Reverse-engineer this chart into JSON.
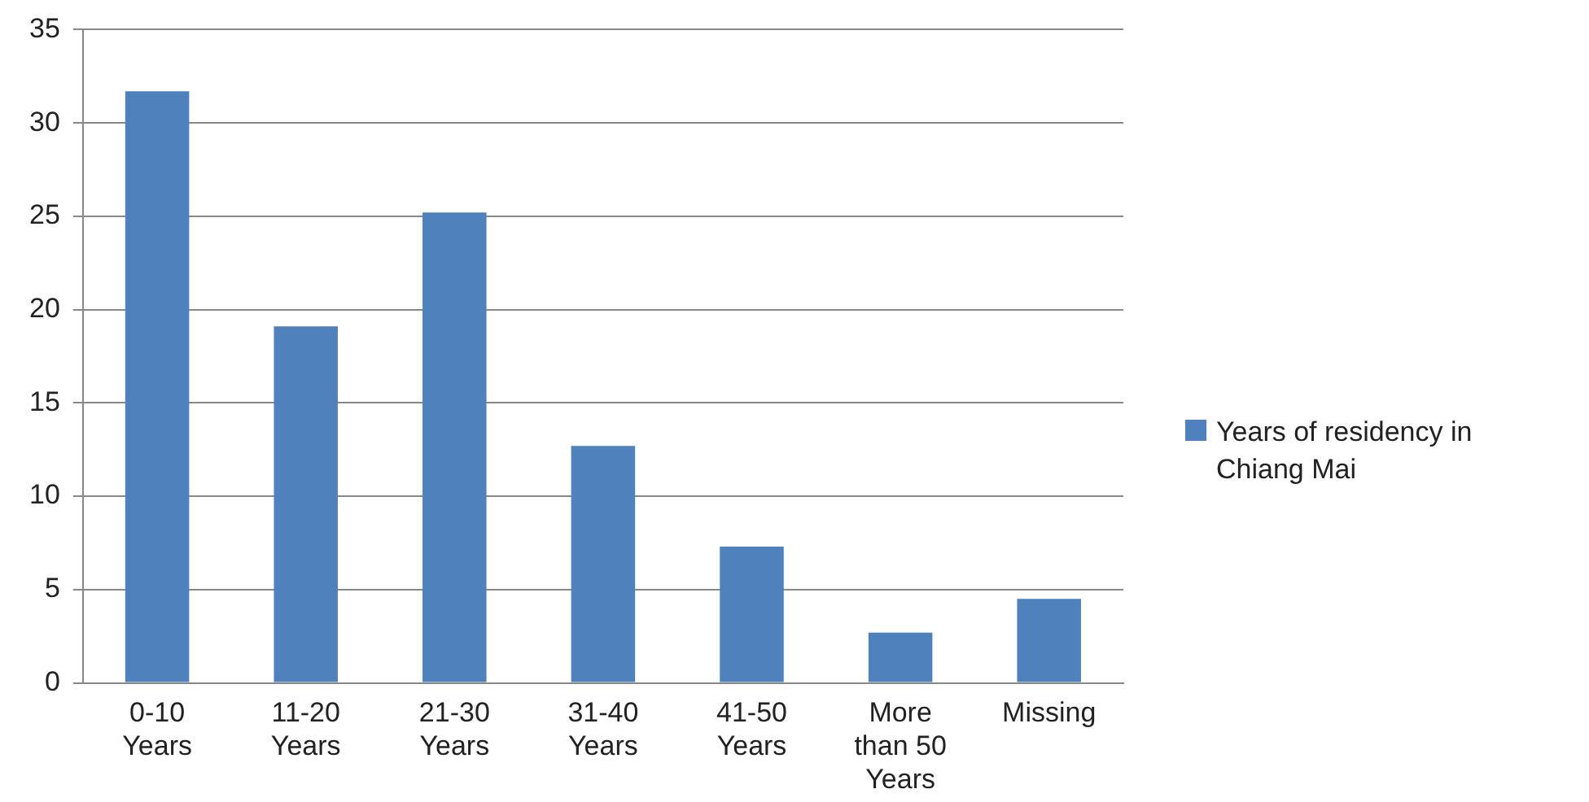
{
  "chart_data": {
    "type": "bar",
    "categories": [
      "0-10 Years",
      "11-20 Years",
      "21-30 Years",
      "31-40 Years",
      "41-50 Years",
      "More than 50 Years",
      "Missing"
    ],
    "series": [
      {
        "name": "Years of residency in Chiang Mai",
        "color": "#4f81bd",
        "values": [
          31.7,
          19.1,
          25.2,
          12.7,
          7.3,
          2.7,
          4.5
        ]
      }
    ],
    "ylim": [
      0,
      35
    ],
    "yticks": [
      0,
      5,
      10,
      15,
      20,
      25,
      30,
      35
    ],
    "grid": "y",
    "legend": "right"
  }
}
